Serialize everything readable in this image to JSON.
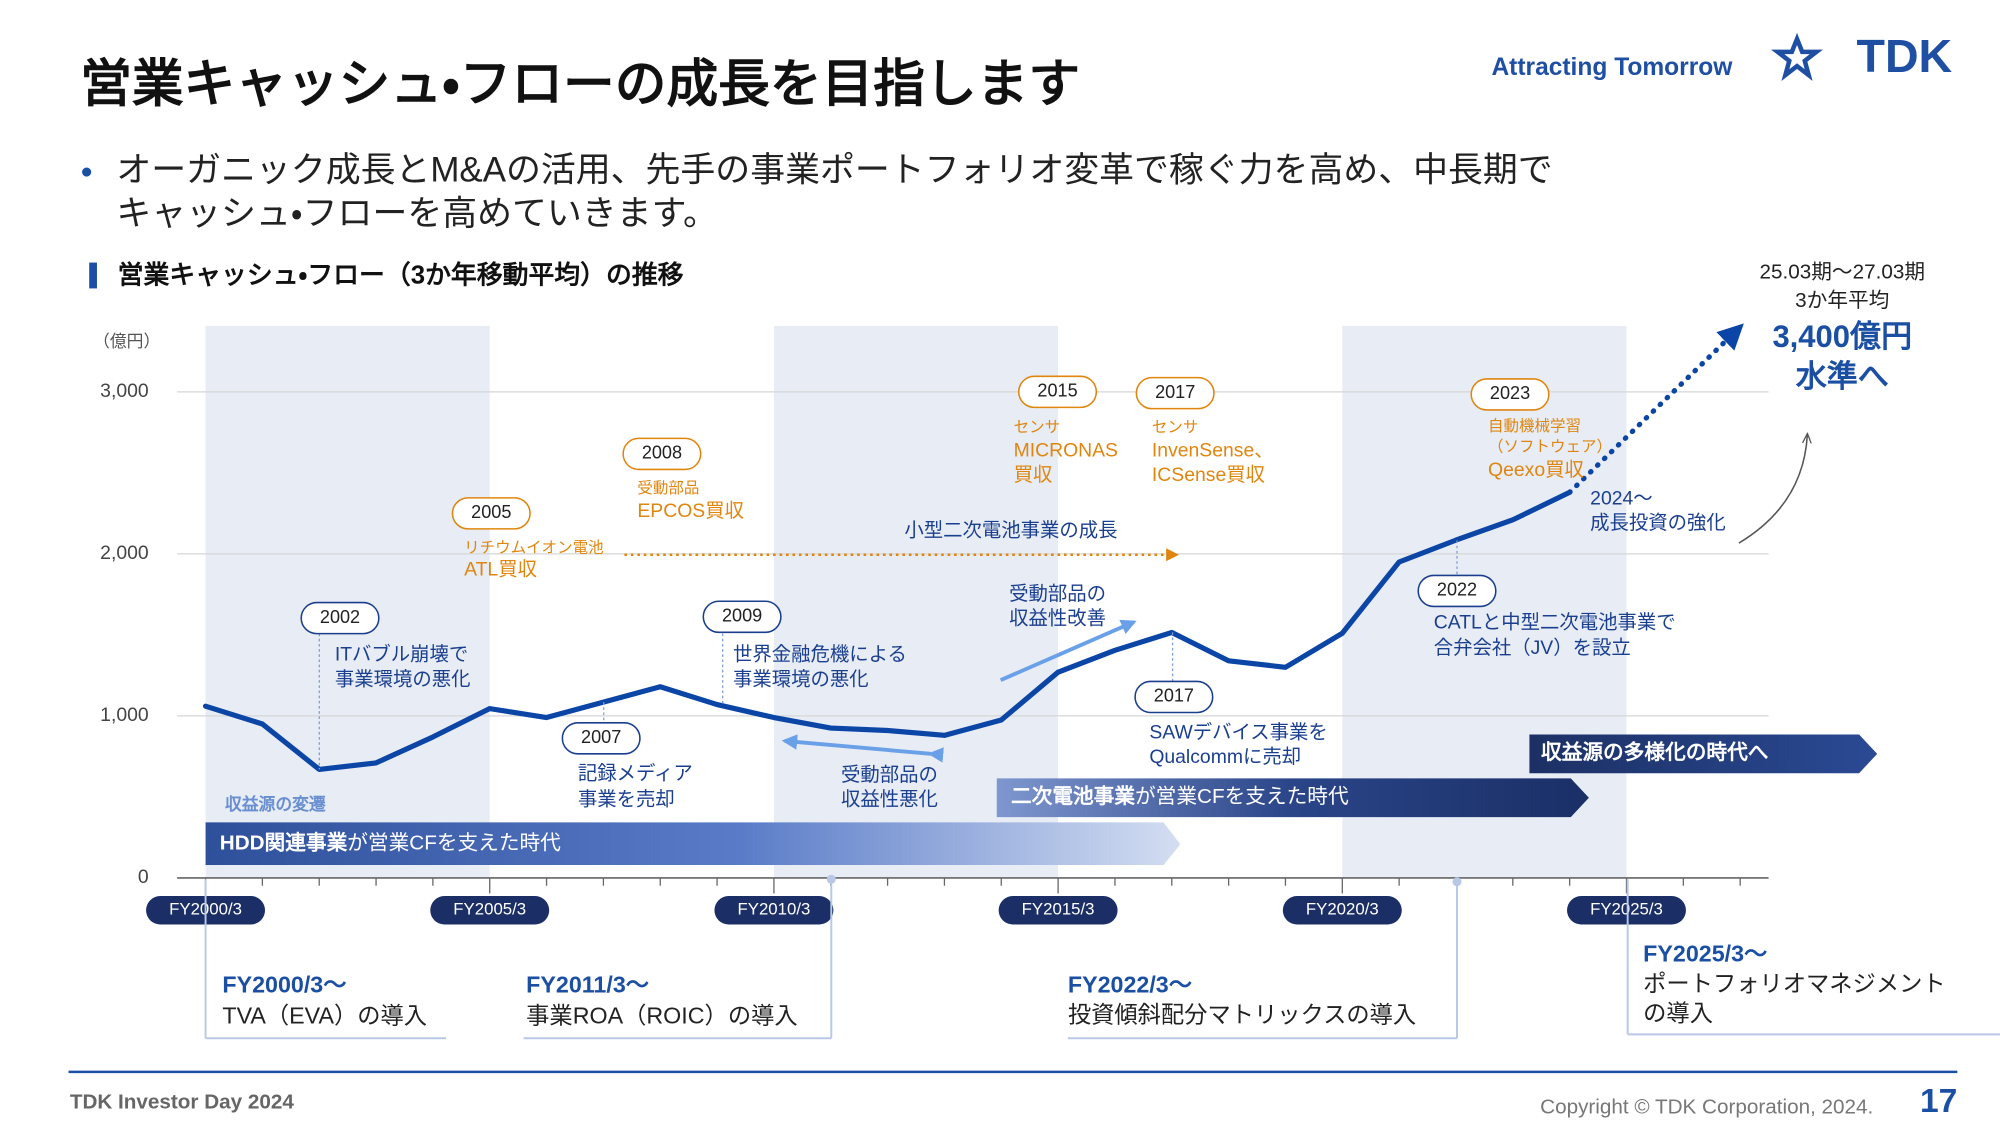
{
  "header": {
    "title": "営業キャッシュ・フローの成長を目指します",
    "tagline": "Attracting Tomorrow",
    "logo": "TDK"
  },
  "bullet": [
    "オーガニック成長とM&Aの活用、先手の事業ポートフォリオ変革で稼ぐ力を高め、中長期で",
    "キャッシュ・フローを高めていきます。"
  ],
  "chart_data": {
    "type": "line",
    "title": "営業キャッシュ・フロー（3か年移動平均）の推移",
    "y_unit": "（億円）",
    "x": [
      2000,
      2001,
      2002,
      2003,
      2004,
      2005,
      2006,
      2007,
      2008,
      2009,
      2010,
      2011,
      2012,
      2013,
      2014,
      2015,
      2016,
      2017,
      2018,
      2019,
      2020,
      2021,
      2022,
      2023,
      2024
    ],
    "series": [
      {
        "color": "#0b46a6",
        "values": [
          1060,
          950,
          670,
          710,
          870,
          1045,
          990,
          1085,
          1180,
          1070,
          990,
          925,
          910,
          880,
          975,
          1270,
          1405,
          1515,
          1340,
          1300,
          1510,
          1950,
          2085,
          2210,
          2380
        ]
      },
      {
        "color": "#0b46a6",
        "style": "dotted",
        "x": [
          2024,
          2027
        ],
        "values": [
          2380,
          3400
        ]
      }
    ],
    "xlim": [
      1999.5,
      2027.5
    ],
    "xticks": [
      {
        "value": 2000,
        "label": "FY2000/3"
      },
      {
        "value": 2005,
        "label": "FY2005/3"
      },
      {
        "value": 2010,
        "label": "FY2010/3"
      },
      {
        "value": 2015,
        "label": "FY2015/3"
      },
      {
        "value": 2020,
        "label": "FY2020/3"
      },
      {
        "value": 2025,
        "label": "FY2025/3"
      }
    ],
    "xminor_ticks": [
      2001,
      2002,
      2003,
      2004,
      2006,
      2007,
      2008,
      2009,
      2011,
      2012,
      2013,
      2014,
      2016,
      2017,
      2018,
      2019,
      2021,
      2022,
      2023,
      2024,
      2026,
      2027
    ],
    "ylim": [
      0,
      3000
    ],
    "yticks": [
      0,
      {
        "value": 1000,
        "label": "1,000"
      },
      {
        "value": 2000,
        "label": "2,000"
      },
      {
        "value": 3000,
        "label": "3,000"
      }
    ],
    "grid": true,
    "bands": [
      [
        2000,
        2005
      ],
      [
        2010,
        2015
      ],
      [
        2020,
        2025
      ]
    ],
    "events": [
      {
        "year": "2002",
        "lines": [
          "ITバブル崩壊で",
          "事業環境の悪化"
        ]
      },
      {
        "year": "2005",
        "lines": [
          "リチウムイオン電池",
          "ATL買収"
        ]
      },
      {
        "year": "2007",
        "lines": [
          "記録メディア",
          "事業を売却"
        ]
      },
      {
        "year": "2008",
        "lines": [
          "受動部品",
          "EPCOS買収"
        ]
      },
      {
        "year": "2009",
        "lines": [
          "世界金融危機による",
          "事業環境の悪化"
        ]
      },
      {
        "year": "2015",
        "lines": [
          "センサ",
          "MICRONAS",
          "買収"
        ]
      },
      {
        "year": "2017",
        "lines": [
          "センサ",
          "InvenSense、",
          "ICSense買収"
        ]
      },
      {
        "year": "2017",
        "lines": [
          "SAWデバイス事業を",
          "Qualcommに売却"
        ]
      },
      {
        "year": "2022",
        "lines": [
          "CATLと中型二次電池事業で",
          "合弁会社（JV）を設立"
        ]
      },
      {
        "year": "2023",
        "lines": [
          "自動機械学習",
          "（ソフトウェア）",
          "Qeexo買収"
        ]
      }
    ],
    "annotations": [
      {
        "lines": [
          "小型二次電池事業の成長"
        ]
      },
      {
        "lines": [
          "受動部品の",
          "収益性改善"
        ]
      },
      {
        "lines": [
          "受動部品の",
          "収益性悪化"
        ]
      },
      {
        "lines": [
          "2024〜",
          "成長投資の強化"
        ]
      }
    ],
    "target": [
      "25.03期〜27.03期",
      "3か年平均",
      "3,400億円",
      "水準へ"
    ],
    "era_label": "収益源の変遷",
    "eras": [
      {
        "bold": "HDD関連事業",
        "text": "が営業CFを支えた時代"
      },
      {
        "bold": "二次電池事業",
        "text": "が営業CFを支えた時代"
      },
      {
        "bold": "収益源の多様化の時代へ"
      }
    ],
    "measures": [
      {
        "period": "FY2000/3〜",
        "lines": [
          "TVA（EVA）の導入"
        ]
      },
      {
        "period": "FY2011/3〜",
        "lines": [
          "事業ROA（ROIC）の導入"
        ]
      },
      {
        "period": "FY2022/3〜",
        "lines": [
          "投資傾斜配分マトリックスの導入"
        ]
      },
      {
        "period": "FY2025/3〜",
        "lines": [
          "ポートフォリオマネジメント",
          "の導入"
        ]
      }
    ]
  },
  "footer": {
    "event": "TDK Investor Day 2024",
    "copyright": "Copyright © TDK Corporation, 2024.",
    "page": "17"
  }
}
